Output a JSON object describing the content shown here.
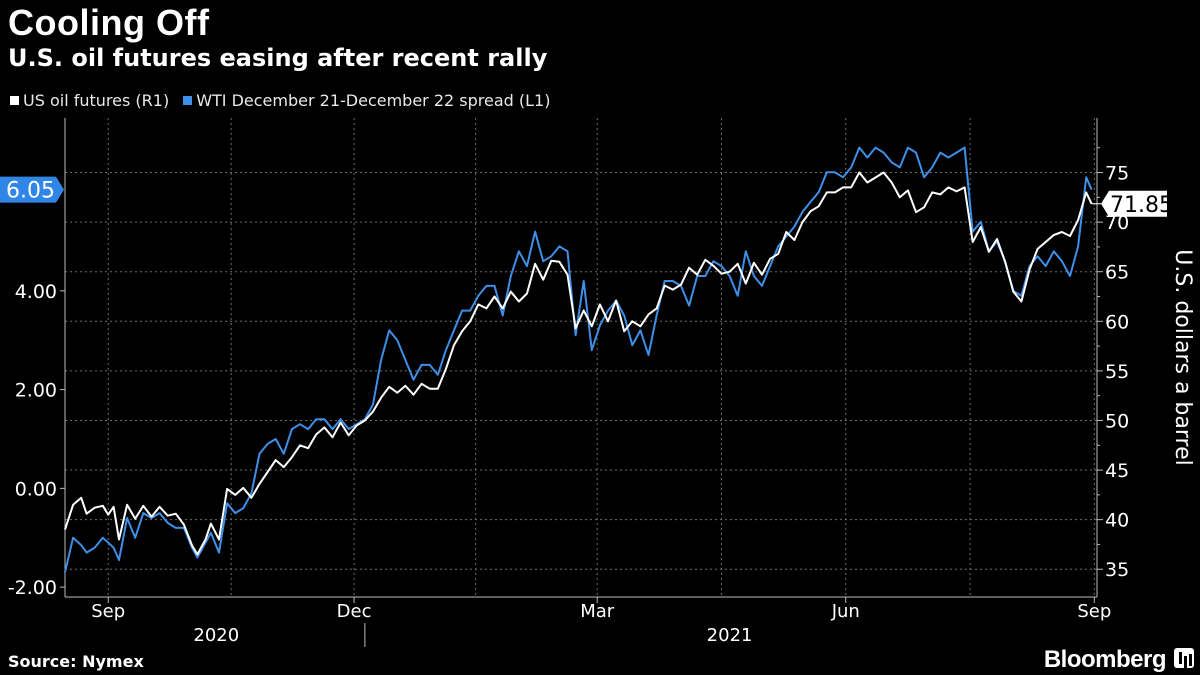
{
  "chart_data": {
    "type": "line",
    "title": "Cooling Off",
    "subtitle": "U.S. oil futures easing after recent rally",
    "source": "Source: Nymex",
    "brand": "Bloomberg",
    "right_axis_label": "U.S. dollars a barrel",
    "left_axis": {
      "range": [
        -2.2,
        7.5
      ],
      "ticks": [
        "-2.00",
        "0.00",
        "2.00",
        "4.00"
      ],
      "tick_values": [
        -2,
        0,
        2,
        4
      ]
    },
    "right_axis": {
      "range": [
        32.2,
        80.5
      ],
      "ticks": [
        "35",
        "40",
        "45",
        "50",
        "55",
        "60",
        "65",
        "70",
        "75"
      ],
      "tick_values": [
        35,
        40,
        45,
        50,
        55,
        60,
        65,
        70,
        75
      ]
    },
    "x_axis": {
      "range": [
        0,
        382
      ],
      "months": [
        {
          "label": "Sep",
          "pos": 16
        },
        {
          "label": "Dec",
          "pos": 107
        },
        {
          "label": "Mar",
          "pos": 197
        },
        {
          "label": "Jun",
          "pos": 289
        },
        {
          "label": "Sep",
          "pos": 381
        }
      ],
      "years": [
        {
          "label": "2020",
          "pos": 56
        },
        {
          "label": "2021",
          "pos": 246
        }
      ],
      "year_divider": 111
    },
    "last_values": {
      "spread": "6.05",
      "oil": "71.85"
    },
    "series": [
      {
        "name": "US oil futures (R1)",
        "axis": "right",
        "color": "#ffffff",
        "points": [
          [
            0,
            39.0
          ],
          [
            3,
            41.5
          ],
          [
            6,
            42.2
          ],
          [
            8,
            40.6
          ],
          [
            11,
            41.2
          ],
          [
            14,
            41.4
          ],
          [
            16,
            40.5
          ],
          [
            18,
            41.3
          ],
          [
            20,
            38.0
          ],
          [
            23,
            41.5
          ],
          [
            26,
            40.1
          ],
          [
            29,
            41.4
          ],
          [
            32,
            40.3
          ],
          [
            35,
            41.3
          ],
          [
            38,
            40.4
          ],
          [
            41,
            40.6
          ],
          [
            44,
            39.5
          ],
          [
            47,
            37.4
          ],
          [
            49,
            36.5
          ],
          [
            52,
            38.0
          ],
          [
            54,
            39.6
          ],
          [
            57,
            38.0
          ],
          [
            60,
            43.1
          ],
          [
            63,
            42.5
          ],
          [
            66,
            43.2
          ],
          [
            69,
            42.2
          ],
          [
            72,
            43.6
          ],
          [
            75,
            44.8
          ],
          [
            78,
            46.0
          ],
          [
            81,
            45.3
          ],
          [
            84,
            46.3
          ],
          [
            87,
            47.5
          ],
          [
            90,
            47.2
          ],
          [
            93,
            48.6
          ],
          [
            96,
            49.3
          ],
          [
            99,
            48.3
          ],
          [
            102,
            49.8
          ],
          [
            105,
            48.5
          ],
          [
            108,
            49.5
          ],
          [
            111,
            50.0
          ],
          [
            114,
            50.9
          ],
          [
            117,
            52.3
          ],
          [
            120,
            53.4
          ],
          [
            123,
            52.8
          ],
          [
            126,
            53.5
          ],
          [
            129,
            52.6
          ],
          [
            132,
            53.7
          ],
          [
            135,
            53.2
          ],
          [
            138,
            53.2
          ],
          [
            141,
            55.2
          ],
          [
            144,
            57.6
          ],
          [
            147,
            59.0
          ],
          [
            150,
            60.0
          ],
          [
            153,
            61.7
          ],
          [
            156,
            61.3
          ],
          [
            159,
            62.5
          ],
          [
            162,
            61.3
          ],
          [
            165,
            63.0
          ],
          [
            168,
            62.0
          ],
          [
            171,
            62.8
          ],
          [
            174,
            65.8
          ],
          [
            177,
            64.2
          ],
          [
            180,
            66.1
          ],
          [
            183,
            66.0
          ],
          [
            186,
            64.7
          ],
          [
            189,
            59.3
          ],
          [
            192,
            61.1
          ],
          [
            195,
            59.5
          ],
          [
            198,
            61.7
          ],
          [
            201,
            60.0
          ],
          [
            204,
            62.1
          ],
          [
            207,
            59.0
          ],
          [
            210,
            60.0
          ],
          [
            213,
            59.5
          ],
          [
            216,
            60.7
          ],
          [
            219,
            61.3
          ],
          [
            222,
            63.6
          ],
          [
            225,
            63.2
          ],
          [
            228,
            63.7
          ],
          [
            231,
            65.4
          ],
          [
            234,
            64.7
          ],
          [
            237,
            66.2
          ],
          [
            240,
            65.6
          ],
          [
            243,
            64.8
          ],
          [
            246,
            65.0
          ],
          [
            249,
            65.8
          ],
          [
            252,
            63.8
          ],
          [
            255,
            65.9
          ],
          [
            258,
            64.7
          ],
          [
            261,
            66.3
          ],
          [
            264,
            66.8
          ],
          [
            267,
            69.0
          ],
          [
            270,
            68.2
          ],
          [
            273,
            70.0
          ],
          [
            276,
            71.1
          ],
          [
            279,
            71.6
          ],
          [
            282,
            73.0
          ],
          [
            285,
            73.0
          ],
          [
            288,
            73.5
          ],
          [
            291,
            73.5
          ],
          [
            294,
            75.0
          ],
          [
            297,
            74.0
          ],
          [
            300,
            74.5
          ],
          [
            303,
            75.0
          ],
          [
            306,
            74.0
          ],
          [
            309,
            72.5
          ],
          [
            312,
            73.2
          ],
          [
            315,
            71.0
          ],
          [
            318,
            71.5
          ],
          [
            321,
            73.0
          ],
          [
            324,
            72.8
          ],
          [
            327,
            73.5
          ],
          [
            330,
            73.1
          ],
          [
            333,
            73.5
          ],
          [
            336,
            68.0
          ],
          [
            339,
            69.5
          ],
          [
            342,
            67.0
          ],
          [
            345,
            68.3
          ],
          [
            348,
            66.0
          ],
          [
            351,
            63.0
          ],
          [
            354,
            62.0
          ],
          [
            357,
            65.2
          ],
          [
            360,
            67.3
          ],
          [
            363,
            68.0
          ],
          [
            366,
            68.7
          ],
          [
            369,
            69.0
          ],
          [
            372,
            68.6
          ],
          [
            375,
            70.2
          ],
          [
            378,
            73.0
          ],
          [
            380,
            71.85
          ]
        ]
      },
      {
        "name": "WTI December 21-December 22 spread (L1)",
        "axis": "left",
        "color": "#3d8fe8",
        "points": [
          [
            0,
            -1.7
          ],
          [
            3,
            -1.0
          ],
          [
            6,
            -1.15
          ],
          [
            8,
            -1.3
          ],
          [
            11,
            -1.2
          ],
          [
            14,
            -1.0
          ],
          [
            16,
            -1.1
          ],
          [
            18,
            -1.2
          ],
          [
            20,
            -1.45
          ],
          [
            23,
            -0.6
          ],
          [
            26,
            -1.0
          ],
          [
            29,
            -0.5
          ],
          [
            32,
            -0.6
          ],
          [
            35,
            -0.5
          ],
          [
            38,
            -0.7
          ],
          [
            41,
            -0.8
          ],
          [
            44,
            -0.8
          ],
          [
            47,
            -1.2
          ],
          [
            49,
            -1.4
          ],
          [
            52,
            -1.1
          ],
          [
            54,
            -0.9
          ],
          [
            57,
            -1.3
          ],
          [
            60,
            -0.3
          ],
          [
            63,
            -0.5
          ],
          [
            66,
            -0.4
          ],
          [
            69,
            -0.1
          ],
          [
            72,
            0.7
          ],
          [
            75,
            0.9
          ],
          [
            78,
            1.0
          ],
          [
            81,
            0.7
          ],
          [
            84,
            1.2
          ],
          [
            87,
            1.3
          ],
          [
            90,
            1.2
          ],
          [
            93,
            1.4
          ],
          [
            96,
            1.4
          ],
          [
            99,
            1.2
          ],
          [
            102,
            1.4
          ],
          [
            105,
            1.2
          ],
          [
            108,
            1.3
          ],
          [
            111,
            1.4
          ],
          [
            114,
            1.7
          ],
          [
            117,
            2.6
          ],
          [
            120,
            3.2
          ],
          [
            123,
            3.0
          ],
          [
            126,
            2.6
          ],
          [
            129,
            2.2
          ],
          [
            132,
            2.5
          ],
          [
            135,
            2.5
          ],
          [
            138,
            2.3
          ],
          [
            141,
            2.8
          ],
          [
            144,
            3.2
          ],
          [
            147,
            3.6
          ],
          [
            150,
            3.6
          ],
          [
            153,
            3.9
          ],
          [
            156,
            4.1
          ],
          [
            159,
            4.1
          ],
          [
            162,
            3.5
          ],
          [
            165,
            4.3
          ],
          [
            168,
            4.8
          ],
          [
            171,
            4.5
          ],
          [
            174,
            5.2
          ],
          [
            177,
            4.6
          ],
          [
            180,
            4.7
          ],
          [
            183,
            4.9
          ],
          [
            186,
            4.8
          ],
          [
            189,
            3.1
          ],
          [
            192,
            4.2
          ],
          [
            195,
            2.8
          ],
          [
            198,
            3.3
          ],
          [
            201,
            3.6
          ],
          [
            204,
            3.8
          ],
          [
            207,
            3.5
          ],
          [
            210,
            2.9
          ],
          [
            213,
            3.2
          ],
          [
            216,
            2.7
          ],
          [
            219,
            3.5
          ],
          [
            222,
            4.2
          ],
          [
            225,
            4.2
          ],
          [
            228,
            4.1
          ],
          [
            231,
            3.7
          ],
          [
            234,
            4.3
          ],
          [
            237,
            4.3
          ],
          [
            240,
            4.6
          ],
          [
            243,
            4.5
          ],
          [
            246,
            4.3
          ],
          [
            249,
            3.9
          ],
          [
            252,
            4.8
          ],
          [
            255,
            4.3
          ],
          [
            258,
            4.1
          ],
          [
            261,
            4.5
          ],
          [
            264,
            4.9
          ],
          [
            267,
            5.1
          ],
          [
            270,
            5.3
          ],
          [
            273,
            5.6
          ],
          [
            276,
            5.8
          ],
          [
            279,
            6.0
          ],
          [
            282,
            6.4
          ],
          [
            285,
            6.4
          ],
          [
            288,
            6.3
          ],
          [
            291,
            6.5
          ],
          [
            294,
            6.9
          ],
          [
            297,
            6.7
          ],
          [
            300,
            6.9
          ],
          [
            303,
            6.8
          ],
          [
            306,
            6.6
          ],
          [
            309,
            6.5
          ],
          [
            312,
            6.9
          ],
          [
            315,
            6.8
          ],
          [
            318,
            6.3
          ],
          [
            321,
            6.5
          ],
          [
            324,
            6.8
          ],
          [
            327,
            6.7
          ],
          [
            330,
            6.8
          ],
          [
            333,
            6.9
          ],
          [
            336,
            5.2
          ],
          [
            339,
            5.4
          ],
          [
            342,
            4.8
          ],
          [
            345,
            5.0
          ],
          [
            348,
            4.6
          ],
          [
            351,
            4.0
          ],
          [
            354,
            3.9
          ],
          [
            357,
            4.5
          ],
          [
            360,
            4.7
          ],
          [
            363,
            4.5
          ],
          [
            366,
            4.8
          ],
          [
            369,
            4.6
          ],
          [
            372,
            4.3
          ],
          [
            375,
            4.9
          ],
          [
            378,
            6.3
          ],
          [
            380,
            6.05
          ]
        ]
      }
    ]
  }
}
